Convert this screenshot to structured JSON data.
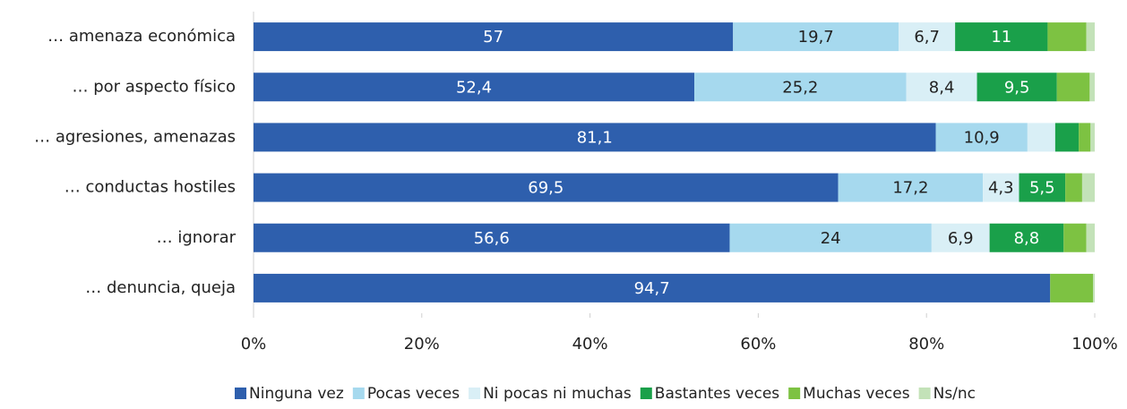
{
  "chart_data": {
    "type": "stacked-bar-horizontal",
    "categories": [
      "… amenaza económica",
      "… por aspecto físico",
      "… agresiones, amenazas",
      "… conductas hostiles",
      "… ignorar",
      "… denuncia, queja"
    ],
    "series": [
      {
        "name": "Ninguna vez",
        "color": "#2e5fad",
        "values": [
          57,
          52.4,
          81.1,
          69.5,
          56.6,
          94.7
        ],
        "value_labels": [
          "57",
          "52,4",
          "81,1",
          "69,5",
          "56,6",
          "94,7"
        ]
      },
      {
        "name": "Pocas veces",
        "color": "#a6d9ee",
        "values": [
          19.7,
          25.2,
          10.9,
          17.2,
          24,
          0
        ],
        "value_labels": [
          "19,7",
          "25,2",
          "10,9",
          "17,2",
          "24",
          null
        ]
      },
      {
        "name": "Ni pocas ni muchas",
        "color": "#d9eff6",
        "values": [
          6.7,
          8.4,
          3.3,
          4.3,
          6.9,
          0
        ],
        "value_labels": [
          "6,7",
          "8,4",
          null,
          "4,3",
          "6,9",
          null
        ]
      },
      {
        "name": "Bastantes veces",
        "color": "#1aa04a",
        "values": [
          11,
          9.5,
          2.8,
          5.5,
          8.8,
          0
        ],
        "value_labels": [
          "11",
          "9,5",
          null,
          "5,5",
          "8,8",
          null
        ]
      },
      {
        "name": "Muchas veces",
        "color": "#7dc242",
        "values": [
          4.6,
          3.9,
          1.4,
          2.0,
          2.7,
          5.1
        ],
        "value_labels": [
          null,
          null,
          null,
          null,
          null,
          null
        ]
      },
      {
        "name": "Ns/nc",
        "color": "#c3e2b8",
        "values": [
          1.0,
          0.6,
          0.5,
          1.5,
          1.0,
          0.2
        ],
        "value_labels": [
          null,
          null,
          null,
          null,
          null,
          null
        ]
      }
    ],
    "xlim": [
      0,
      100
    ],
    "xticks": [
      {
        "value": 0,
        "label": "0%"
      },
      {
        "value": 20,
        "label": "20%"
      },
      {
        "value": 40,
        "label": "40%"
      },
      {
        "value": 60,
        "label": "60%"
      },
      {
        "value": 80,
        "label": "80%"
      },
      {
        "value": 100,
        "label": "100%"
      }
    ]
  }
}
